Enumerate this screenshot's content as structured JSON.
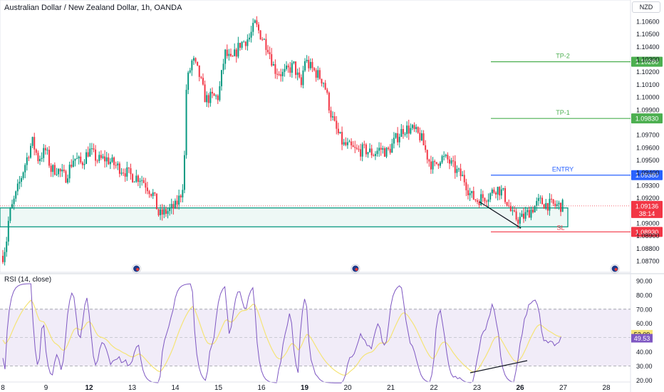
{
  "header": {
    "title": "Australian Dollar / New Zealand Dollar, 1h, OANDA",
    "currency": "NZD"
  },
  "rsi": {
    "label": "RSI (14, close)",
    "value_rsi": "52.09",
    "value_ma": "49.53",
    "band_upper": 70,
    "band_mid": 50,
    "band_lower": 30,
    "ticks": [
      "90.00",
      "80.00",
      "70.00",
      "60.00",
      "50.00",
      "40.00",
      "30.00",
      "20.00"
    ]
  },
  "colors": {
    "up": "#089981",
    "down": "#f23645",
    "tp": "#4caf50",
    "entry": "#2962ff",
    "sl": "#f23645",
    "zone": "#089981",
    "rsi_line": "#7e57c2",
    "rsi_ma": "#f5e477",
    "rsi_band": "#ede7f6"
  },
  "levels": {
    "tp2": {
      "label": "TP-2",
      "price": 1.1028,
      "price_label": "1.10280"
    },
    "tp1": {
      "label": "TP-1",
      "price": 1.0983,
      "price_label": "1.09830"
    },
    "entry": {
      "label": "ENTRY",
      "price": 1.0938,
      "price_label": "1.09380"
    },
    "current": {
      "price": 1.09136,
      "price_label": "1.09136",
      "countdown": "38:14"
    },
    "sl": {
      "label": "SL",
      "price": 1.0893,
      "price_label": "1.08930"
    }
  },
  "chart_data": {
    "type": "candlestick",
    "title": "Australian Dollar / New Zealand Dollar, 1h, OANDA",
    "price_range": [
      1.0862,
      1.1072
    ],
    "y_ticks": [
      "1.10600",
      "1.10500",
      "1.10400",
      "1.10300",
      "1.10200",
      "1.10100",
      "1.10000",
      "1.09900",
      "1.09700",
      "1.09600",
      "1.09500",
      "1.09400",
      "1.09300",
      "1.09200",
      "1.09000",
      "1.08900",
      "1.08800",
      "1.08700"
    ],
    "x_ticks": [
      {
        "label": "8",
        "day": 0,
        "bold": false
      },
      {
        "label": "9",
        "day": 1,
        "bold": false
      },
      {
        "label": "12",
        "day": 2,
        "bold": true
      },
      {
        "label": "13",
        "day": 3,
        "bold": false
      },
      {
        "label": "14",
        "day": 4,
        "bold": false
      },
      {
        "label": "15",
        "day": 5,
        "bold": false
      },
      {
        "label": "16",
        "day": 6,
        "bold": false
      },
      {
        "label": "19",
        "day": 7,
        "bold": true
      },
      {
        "label": "20",
        "day": 8,
        "bold": false
      },
      {
        "label": "21",
        "day": 9,
        "bold": false
      },
      {
        "label": "22",
        "day": 10,
        "bold": false
      },
      {
        "label": "23",
        "day": 11,
        "bold": false
      },
      {
        "label": "26",
        "day": 12,
        "bold": true
      },
      {
        "label": "27",
        "day": 13,
        "bold": false
      },
      {
        "label": "28",
        "day": 14,
        "bold": false
      }
    ],
    "anchors": [
      [
        0,
        1.0874
      ],
      [
        0.08,
        1.0885
      ],
      [
        0.14,
        1.0905
      ],
      [
        0.3,
        1.0922
      ],
      [
        0.5,
        1.0945
      ],
      [
        0.68,
        1.0965
      ],
      [
        0.82,
        1.0951
      ],
      [
        1.0,
        1.0958
      ],
      [
        1.12,
        1.0942
      ],
      [
        1.25,
        1.0943
      ],
      [
        1.45,
        1.0936
      ],
      [
        1.65,
        1.0952
      ],
      [
        1.82,
        1.0947
      ],
      [
        2.0,
        1.0958
      ],
      [
        2.2,
        1.095
      ],
      [
        2.4,
        1.0951
      ],
      [
        2.6,
        1.0946
      ],
      [
        2.8,
        1.0942
      ],
      [
        3.0,
        1.0937
      ],
      [
        3.2,
        1.0936
      ],
      [
        3.5,
        1.0922
      ],
      [
        3.62,
        1.0906
      ],
      [
        3.85,
        1.091
      ],
      [
        4.0,
        1.0913
      ],
      [
        4.12,
        1.0922
      ],
      [
        4.2,
        1.0935
      ],
      [
        4.26,
        1.101
      ],
      [
        4.4,
        1.103
      ],
      [
        4.55,
        1.1018
      ],
      [
        4.7,
        1.0998
      ],
      [
        4.85,
        1.1
      ],
      [
        5.0,
        1.1
      ],
      [
        5.15,
        1.1035
      ],
      [
        5.3,
        1.1028
      ],
      [
        5.5,
        1.1042
      ],
      [
        5.72,
        1.1047
      ],
      [
        5.85,
        1.1058
      ],
      [
        6.0,
        1.1048
      ],
      [
        6.15,
        1.104
      ],
      [
        6.3,
        1.1022
      ],
      [
        6.5,
        1.1018
      ],
      [
        6.75,
        1.1025
      ],
      [
        6.92,
        1.1008
      ],
      [
        7.0,
        1.103
      ],
      [
        7.12,
        1.1024
      ],
      [
        7.3,
        1.1018
      ],
      [
        7.45,
        1.1012
      ],
      [
        7.6,
        1.0988
      ],
      [
        7.72,
        1.0975
      ],
      [
        7.9,
        1.0962
      ],
      [
        8.0,
        1.0961
      ],
      [
        8.2,
        1.0957
      ],
      [
        8.4,
        1.0958
      ],
      [
        8.6,
        1.0955
      ],
      [
        8.75,
        1.0959
      ],
      [
        8.92,
        1.0956
      ],
      [
        9.0,
        1.096
      ],
      [
        9.1,
        1.0966
      ],
      [
        9.3,
        1.0975
      ],
      [
        9.5,
        1.0974
      ],
      [
        9.7,
        1.0968
      ],
      [
        9.88,
        1.095
      ],
      [
        10.0,
        1.0944
      ],
      [
        10.15,
        1.0952
      ],
      [
        10.32,
        1.095
      ],
      [
        10.5,
        1.0942
      ],
      [
        10.7,
        1.0935
      ],
      [
        10.85,
        1.0922
      ],
      [
        11.0,
        1.0918
      ],
      [
        11.1,
        1.092
      ],
      [
        11.28,
        1.0922
      ],
      [
        11.45,
        1.0928
      ],
      [
        11.6,
        1.0924
      ],
      [
        11.72,
        1.0915
      ],
      [
        11.82,
        1.0906
      ],
      [
        11.95,
        1.0903
      ],
      [
        12.05,
        1.0904
      ],
      [
        12.18,
        1.0908
      ],
      [
        12.3,
        1.0912
      ],
      [
        12.45,
        1.0917
      ],
      [
        12.6,
        1.0915
      ],
      [
        12.8,
        1.0914
      ],
      [
        13.0,
        1.09136
      ]
    ],
    "trendline": {
      "from": [
        11.05,
        1.0917
      ],
      "to": [
        12.02,
        1.0896
      ]
    },
    "support_zone": {
      "top": 1.0912,
      "bottom": 1.0897
    }
  }
}
